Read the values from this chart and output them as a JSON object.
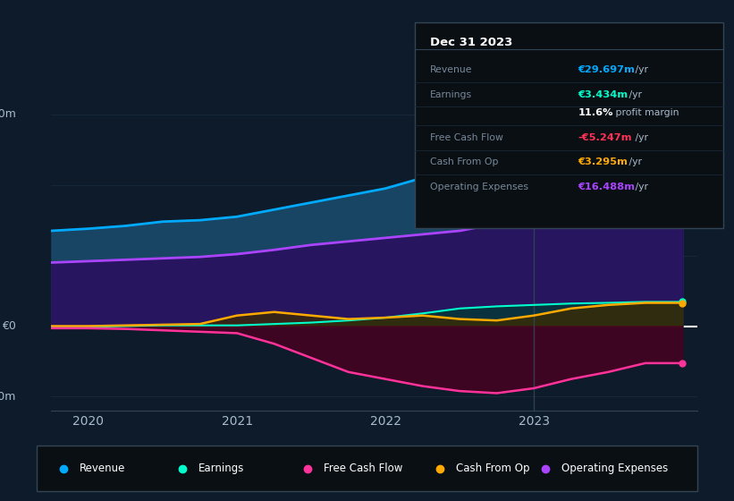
{
  "background_color": "#0d1b2a",
  "plot_bg_color": "#0d1b2a",
  "x_values": [
    2019.75,
    2020.0,
    2020.25,
    2020.5,
    2020.75,
    2021.0,
    2021.25,
    2021.5,
    2021.75,
    2022.0,
    2022.25,
    2022.5,
    2022.75,
    2023.0,
    2023.25,
    2023.5,
    2023.75,
    2024.0
  ],
  "revenue": [
    13.5,
    13.8,
    14.2,
    14.8,
    15.0,
    15.5,
    16.5,
    17.5,
    18.5,
    19.5,
    21.0,
    22.5,
    24.5,
    26.0,
    27.5,
    29.0,
    29.697,
    29.697
  ],
  "earnings": [
    -0.2,
    -0.1,
    0.0,
    0.1,
    0.1,
    0.1,
    0.3,
    0.5,
    0.8,
    1.2,
    1.8,
    2.5,
    2.8,
    3.0,
    3.2,
    3.3,
    3.434,
    3.434
  ],
  "free_cash_flow": [
    -0.3,
    -0.3,
    -0.4,
    -0.6,
    -0.8,
    -1.0,
    -2.5,
    -4.5,
    -6.5,
    -7.5,
    -8.5,
    -9.2,
    -9.5,
    -8.8,
    -7.5,
    -6.5,
    -5.247,
    -5.247
  ],
  "cash_from_op": [
    0.0,
    0.0,
    0.1,
    0.2,
    0.3,
    1.5,
    2.0,
    1.5,
    1.0,
    1.2,
    1.5,
    1.0,
    0.8,
    1.5,
    2.5,
    3.0,
    3.295,
    3.295
  ],
  "operating_expenses": [
    9.0,
    9.2,
    9.4,
    9.6,
    9.8,
    10.2,
    10.8,
    11.5,
    12.0,
    12.5,
    13.0,
    13.5,
    14.5,
    15.0,
    15.5,
    16.0,
    16.488,
    16.488
  ],
  "revenue_color": "#00aaff",
  "earnings_color": "#00ffcc",
  "free_cash_flow_color": "#ff3399",
  "cash_from_op_color": "#ffaa00",
  "operating_expenses_color": "#aa44ff",
  "highlight_x": 2023.0,
  "xticks": [
    2020,
    2021,
    2022,
    2023
  ],
  "xlim": [
    2019.75,
    2024.1
  ],
  "ylim": [
    -12,
    32
  ],
  "row_data": [
    {
      "label": "Revenue",
      "val_colored": "€29.697m",
      "val_plain": " /yr",
      "vcol": "#00aaff"
    },
    {
      "label": "Earnings",
      "val_colored": "€3.434m",
      "val_plain": " /yr",
      "vcol": "#00ffcc"
    },
    {
      "label": "",
      "val_colored": "11.6%",
      "val_plain": " profit margin",
      "vcol": "#ffffff"
    },
    {
      "label": "Free Cash Flow",
      "val_colored": "-€5.247m",
      "val_plain": " /yr",
      "vcol": "#ff3355"
    },
    {
      "label": "Cash From Op",
      "val_colored": "€3.295m",
      "val_plain": " /yr",
      "vcol": "#ffaa00"
    },
    {
      "label": "Operating Expenses",
      "val_colored": "€16.488m",
      "val_plain": " /yr",
      "vcol": "#aa44ff"
    }
  ],
  "legend": [
    {
      "label": "Revenue",
      "color": "#00aaff"
    },
    {
      "label": "Earnings",
      "color": "#00ffcc"
    },
    {
      "label": "Free Cash Flow",
      "color": "#ff3399"
    },
    {
      "label": "Cash From Op",
      "color": "#ffaa00"
    },
    {
      "label": "Operating Expenses",
      "color": "#aa44ff"
    }
  ]
}
